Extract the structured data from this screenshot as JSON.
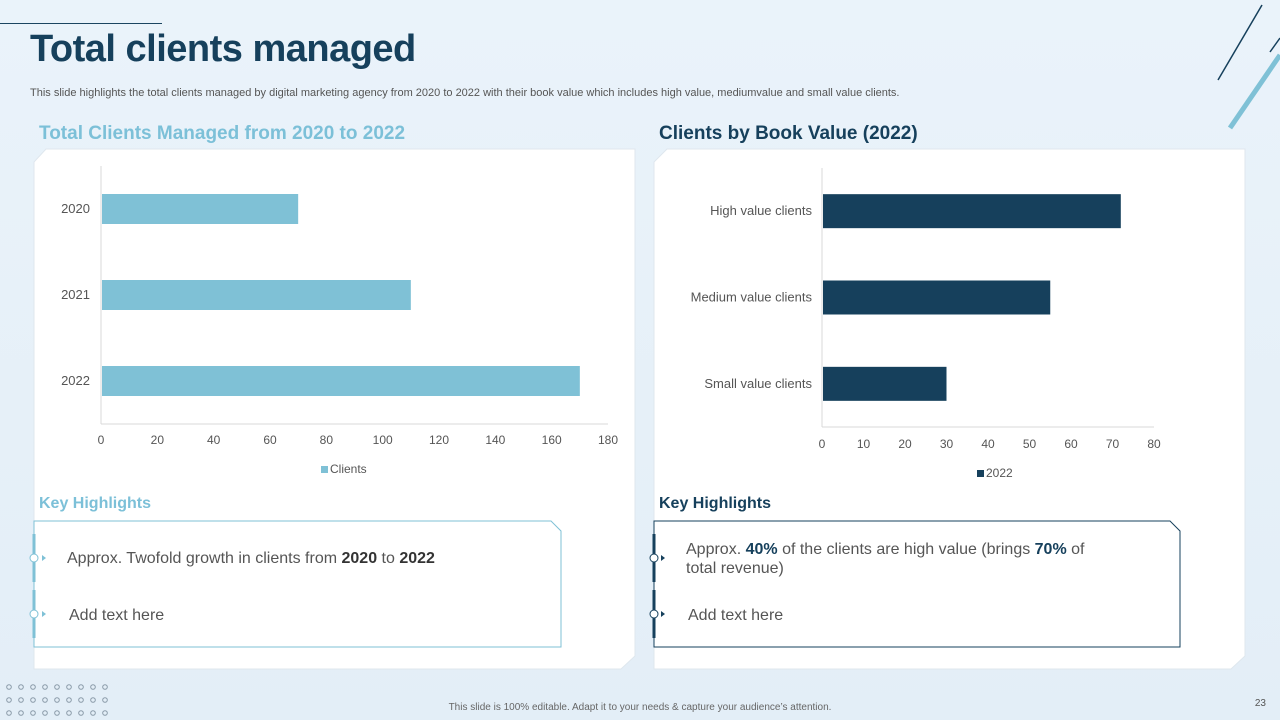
{
  "slide": {
    "title": "Total clients managed",
    "subtitle": "This slide highlights the total clients managed by digital marketing agency from 2020 to 2022 with their book value which includes high value, mediumvalue and small value clients.",
    "footer": "This slide is 100% editable.  Adapt it to your needs & capture your audience’s attention.",
    "page_number": "23"
  },
  "left_panel": {
    "title": "Total Clients Managed from 2020 to 2022",
    "highlights_title": "Key Highlights",
    "highlight_1": {
      "prefix": "Approx. Twofold growth in clients from ",
      "year_from": "2020",
      "middle": " to ",
      "year_to": "2022"
    },
    "highlight_2": "Add text here"
  },
  "right_panel": {
    "title": "Clients by Book Value (2022)",
    "highlights_title": "Key Highlights",
    "highlight_1": {
      "prefix": "Approx. ",
      "pct_high": "40%",
      "middle": " of the clients are high value (brings ",
      "pct_revenue": "70%",
      "suffix": " of total revenue)"
    },
    "highlight_2": "Add text here"
  },
  "colors": {
    "light_bar": "#7fc1d6",
    "dark_bar": "#16405c",
    "axis": "#d9d9d9",
    "tick_text": "#555555"
  },
  "chart_data": [
    {
      "type": "bar",
      "orientation": "horizontal",
      "title": "Total Clients Managed from 2020 to 2022",
      "categories": [
        "2020",
        "2021",
        "2022"
      ],
      "series": [
        {
          "name": "Clients",
          "values": [
            70,
            110,
            170
          ]
        }
      ],
      "xlim": [
        0,
        180
      ],
      "xticks": [
        0,
        20,
        40,
        60,
        80,
        100,
        120,
        140,
        160,
        180
      ],
      "legend": "bottom",
      "grid": false
    },
    {
      "type": "bar",
      "orientation": "horizontal",
      "title": "Clients by Book Value (2022)",
      "categories": [
        "High value clients",
        "Medium value clients",
        "Small value clients"
      ],
      "series": [
        {
          "name": "2022",
          "values": [
            72,
            55,
            30
          ]
        }
      ],
      "xlim": [
        0,
        80
      ],
      "xticks": [
        0,
        10,
        20,
        30,
        40,
        50,
        60,
        70,
        80
      ],
      "legend": "bottom",
      "grid": false
    }
  ]
}
